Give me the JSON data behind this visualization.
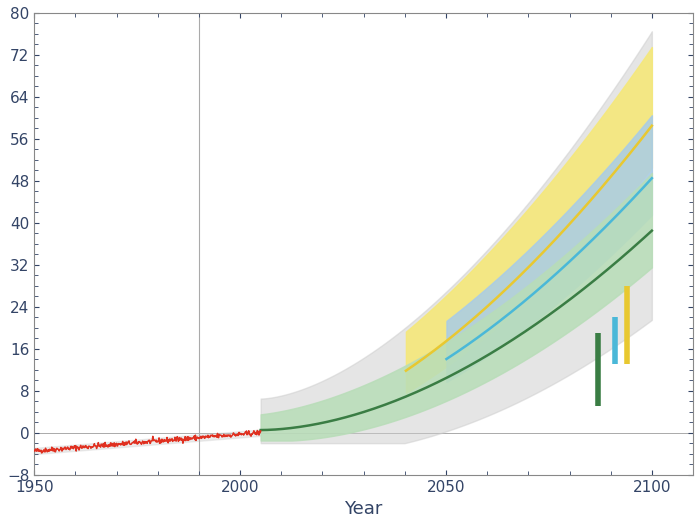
{
  "xlabel": "Year",
  "xlim": [
    1950,
    2110
  ],
  "ylim": [
    -8,
    80
  ],
  "yticks": [
    -8,
    0,
    8,
    16,
    24,
    32,
    40,
    48,
    56,
    64,
    72,
    80
  ],
  "xticks": [
    1950,
    2000,
    2050,
    2100
  ],
  "background_color": "#ffffff",
  "gray_band_color": "#cccccc",
  "green_line_color": "#3a7d44",
  "green_band_color": "#b8ddb8",
  "blue_band_color": "#a8cce8",
  "yellow_band_color": "#f5e87a",
  "cyan_line_color": "#4ab8d8",
  "yellow_line_color": "#e8c830",
  "red_line_color": "#e03020",
  "vert_x_green": 2087,
  "vert_x_cyan": 2091,
  "vert_x_yellow": 2094,
  "green_bar_low": 5,
  "green_bar_high": 19,
  "cyan_bar_low": 13,
  "cyan_bar_high": 22,
  "yellow_bar_low": 13,
  "yellow_bar_high": 28
}
